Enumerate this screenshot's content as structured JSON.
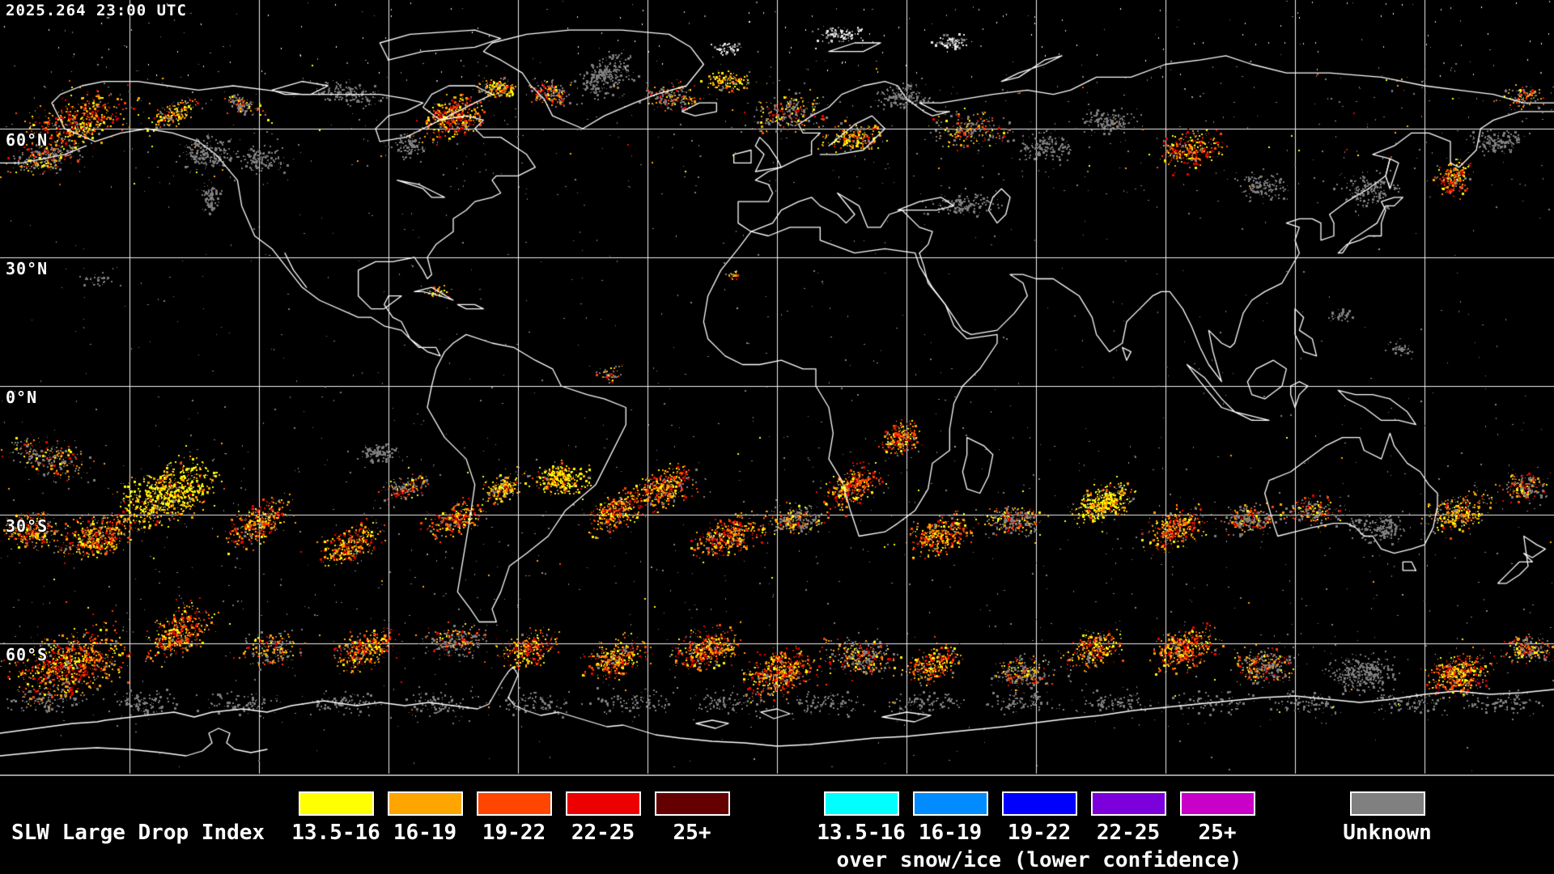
{
  "title_bar": {
    "timestamp": "2025.264 23:00 UTC"
  },
  "map": {
    "latitude_labels": [
      "60°N",
      "30°N",
      "0°N",
      "30°S",
      "60°S"
    ],
    "background_color": "#000000",
    "gridline_color": "#f0f0f0",
    "coastline_color": "#ffffff"
  },
  "legend": {
    "title": "SLW Large Drop Index",
    "standard": {
      "items": [
        {
          "label": "13.5-16",
          "color": "#FFFF00"
        },
        {
          "label": "16-19",
          "color": "#FFA500"
        },
        {
          "label": "19-22",
          "color": "#FF4500"
        },
        {
          "label": "22-25",
          "color": "#ED0000"
        },
        {
          "label": "25+",
          "color": "#640000"
        }
      ]
    },
    "snow_ice": {
      "caption": "over snow/ice (lower confidence)",
      "items": [
        {
          "label": "13.5-16",
          "color": "#00FFFF"
        },
        {
          "label": "16-19",
          "color": "#008CFF"
        },
        {
          "label": "19-22",
          "color": "#0000FF"
        },
        {
          "label": "22-25",
          "color": "#7B00DB"
        },
        {
          "label": "25+",
          "color": "#C800C8"
        }
      ]
    },
    "unknown": {
      "label": "Unknown",
      "color": "#808080"
    }
  }
}
